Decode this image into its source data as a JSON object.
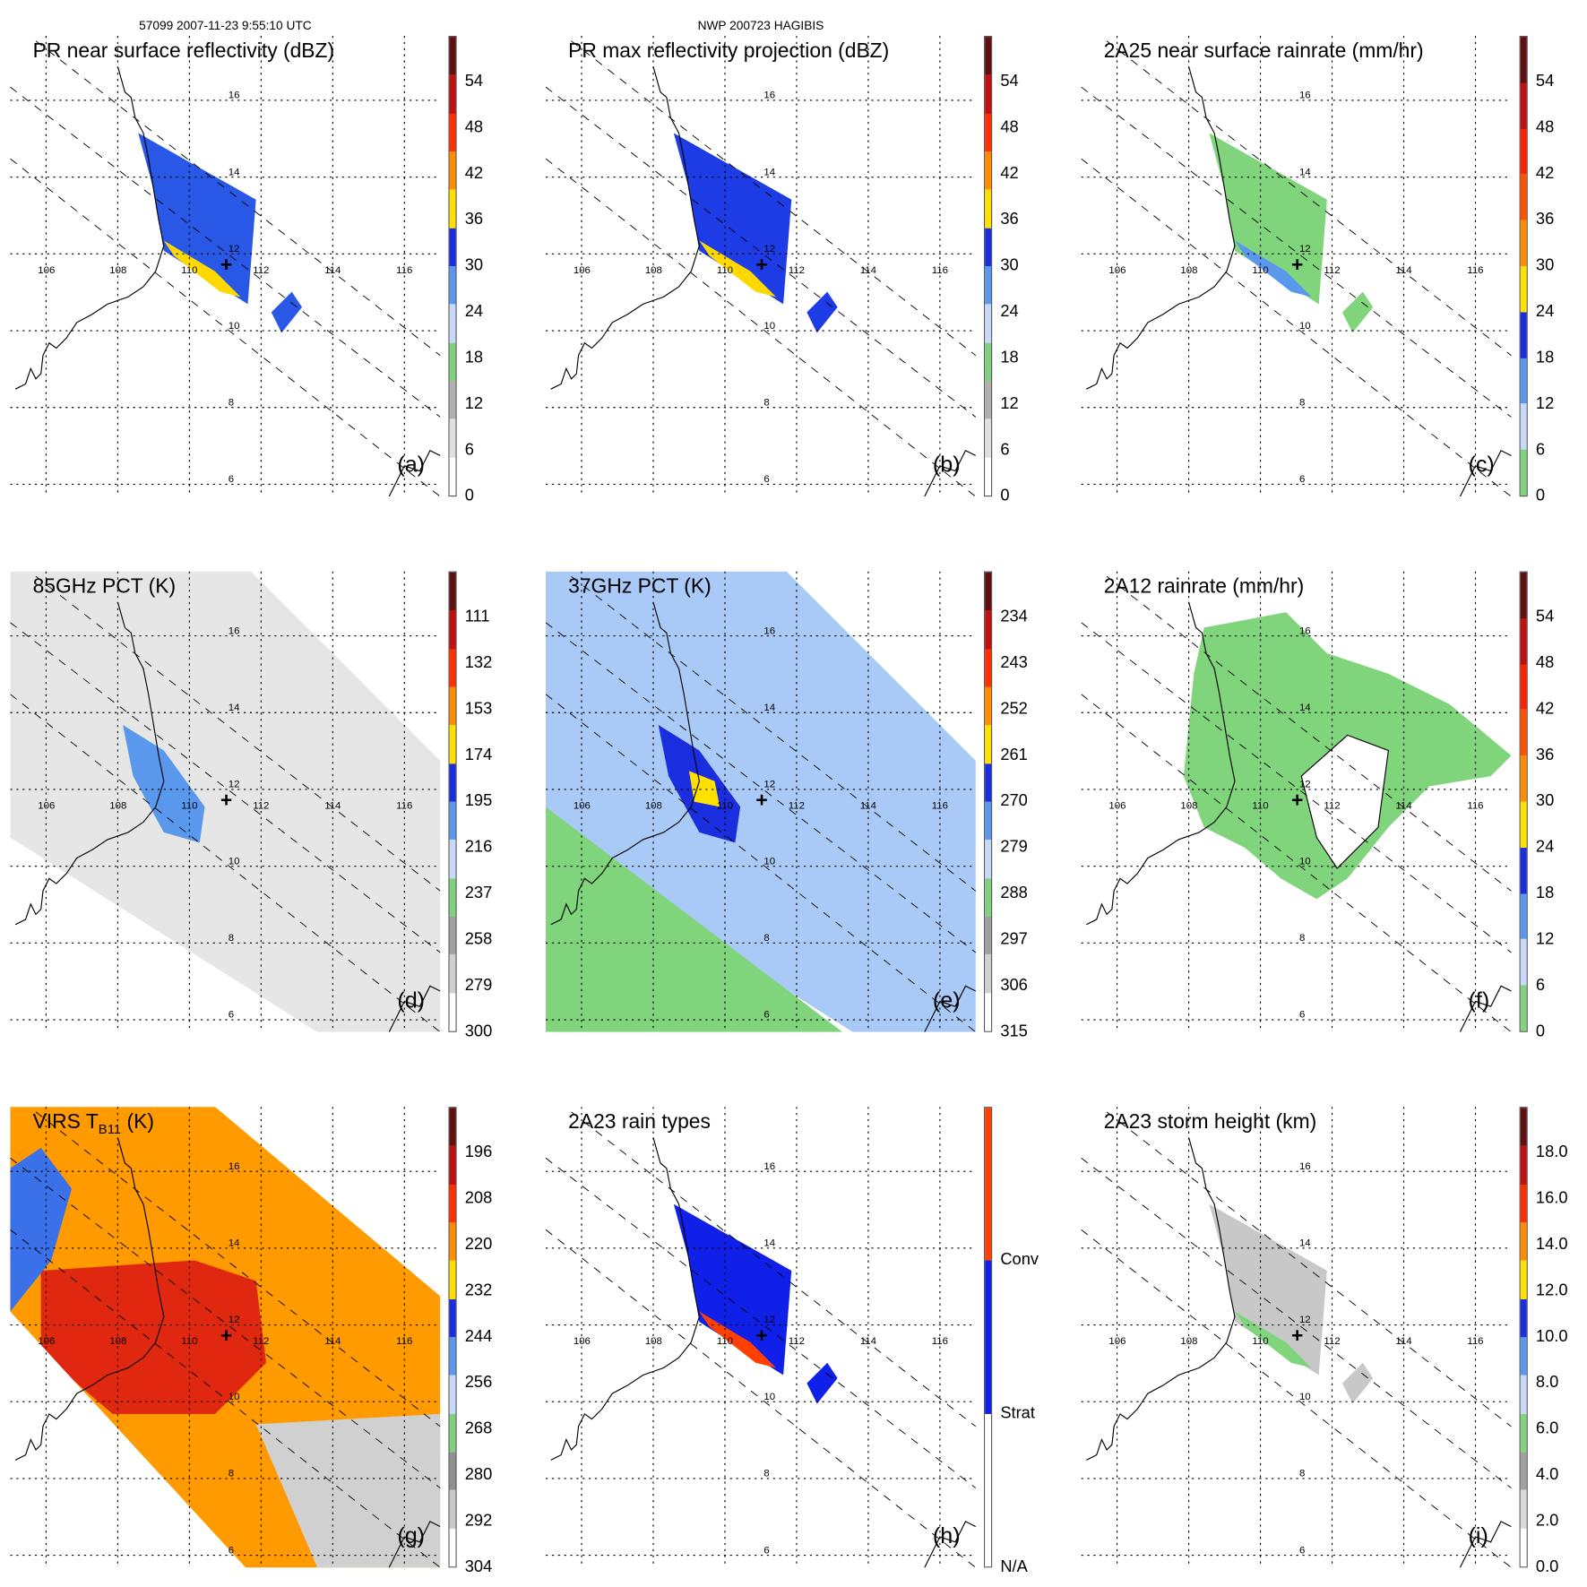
{
  "header": {
    "left": "57099 2007-11-23 9:55:10 UTC",
    "center": "NWP 200723 HAGIBIS"
  },
  "lat_labels": [
    "16",
    "14",
    "12",
    "10",
    "8",
    "6"
  ],
  "lon_labels": [
    "106",
    "108",
    "110",
    "112",
    "114",
    "116"
  ],
  "panels": [
    {
      "id": "a",
      "title": "PR near surface reflectivity (dBZ)",
      "label": "(a)",
      "kind": "pr",
      "fill": "#2a58e6",
      "accent": "#ffd800",
      "ticks": [
        "0",
        "6",
        "12",
        "18",
        "24",
        "30",
        "36",
        "42",
        "48",
        "54"
      ],
      "colors": [
        "#ffffff",
        "#e0e0e0",
        "#b0b0b0",
        "#7fd07f",
        "#c8d8f8",
        "#5a98ee",
        "#1a2ee0",
        "#ffe000",
        "#ff8c00",
        "#ff3000",
        "#c01010",
        "#601010"
      ]
    },
    {
      "id": "b",
      "title": "PR max reflectivity projection (dBZ)",
      "label": "(b)",
      "kind": "pr",
      "fill": "#1e3ce6",
      "accent": "#ffd800",
      "ticks": [
        "0",
        "6",
        "12",
        "18",
        "24",
        "30",
        "36",
        "42",
        "48",
        "54"
      ],
      "colors": [
        "#ffffff",
        "#e0e0e0",
        "#b0b0b0",
        "#7fd07f",
        "#c8d8f8",
        "#5a98ee",
        "#1a2ee0",
        "#ffe000",
        "#ff8c00",
        "#ff3000",
        "#c01010",
        "#601010"
      ]
    },
    {
      "id": "c",
      "title": "2A25 near surface rainrate (mm/hr)",
      "label": "(c)",
      "kind": "pr",
      "fill": "#80d47c",
      "accent": "#5a98ee",
      "ticks": [
        "0",
        "6",
        "12",
        "18",
        "24",
        "30",
        "36",
        "42",
        "48",
        "54"
      ],
      "colors": [
        "#80d47c",
        "#c8d8f8",
        "#5a98ee",
        "#1a2ee0",
        "#ffe000",
        "#ff8c00",
        "#ff5000",
        "#ff2000",
        "#c01010",
        "#601010"
      ]
    },
    {
      "id": "d",
      "title": "85GHz PCT (K)",
      "label": "(d)",
      "kind": "wide",
      "fill": "#e6e6e6",
      "accent": "#5a98ee",
      "ticks": [
        "300",
        "279",
        "258",
        "237",
        "216",
        "195",
        "174",
        "153",
        "132",
        "111"
      ],
      "colors": [
        "#ffffff",
        "#d0d0d0",
        "#a0a0a0",
        "#7fd07f",
        "#c8d8f8",
        "#5a98ee",
        "#1a2ee0",
        "#ffe000",
        "#ff8c00",
        "#ff3000",
        "#c01010",
        "#601010"
      ]
    },
    {
      "id": "e",
      "title": "37GHz PCT (K)",
      "label": "(e)",
      "kind": "wide",
      "fill": "#a9c9f7",
      "accent": "#ffe000",
      "ticks": [
        "315",
        "306",
        "297",
        "288",
        "279",
        "270",
        "261",
        "252",
        "243",
        "234"
      ],
      "colors": [
        "#ffffff",
        "#d0d0d0",
        "#a0a0a0",
        "#7fd07f",
        "#c8d8f8",
        "#5a98ee",
        "#1a2ee0",
        "#ffe000",
        "#ff8c00",
        "#ff3000",
        "#c01010",
        "#601010"
      ]
    },
    {
      "id": "f",
      "title": "2A12 rainrate (mm/hr)",
      "label": "(f)",
      "kind": "storm",
      "fill": "#80d47c",
      "accent": "#5a98ee",
      "ticks": [
        "0",
        "6",
        "12",
        "18",
        "24",
        "30",
        "36",
        "42",
        "48",
        "54"
      ],
      "colors": [
        "#80d47c",
        "#c8d8f8",
        "#5a98ee",
        "#1a2ee0",
        "#ffe000",
        "#ff8c00",
        "#ff5000",
        "#ff2000",
        "#c01010",
        "#601010"
      ]
    },
    {
      "id": "g",
      "title": "VIRS T",
      "title_sub": "B11",
      "title_end": " (K)",
      "label": "(g)",
      "kind": "virs",
      "fill": "#ff9a00",
      "accent": "#e02010",
      "ticks": [
        "304",
        "292",
        "280",
        "268",
        "256",
        "244",
        "232",
        "220",
        "208",
        "196"
      ],
      "colors": [
        "#ffffff",
        "#c8c8c8",
        "#909090",
        "#7fd07f",
        "#c8d8f8",
        "#5a98ee",
        "#1a2ee0",
        "#ffe000",
        "#ff8c00",
        "#ff3000",
        "#c01010",
        "#601010"
      ]
    },
    {
      "id": "h",
      "title": "2A23 rain types",
      "label": "(h)",
      "kind": "pr",
      "fill": "#1020e8",
      "accent": "#ff4000",
      "ticks": [
        "N/A",
        "Strat",
        "Conv"
      ],
      "colors": [
        "#ffffff",
        "#1020e8",
        "#ff4000"
      ]
    },
    {
      "id": "i",
      "title": "2A23 storm height (km)",
      "label": "(i)",
      "kind": "pr",
      "fill": "#c8c8c8",
      "accent": "#80d47c",
      "ticks": [
        "0.0",
        "2.0",
        "4.0",
        "6.0",
        "8.0",
        "10.0",
        "12.0",
        "14.0",
        "16.0",
        "18.0"
      ],
      "colors": [
        "#ffffff",
        "#d8d8d8",
        "#a0a0a0",
        "#80d47c",
        "#c8d8f8",
        "#5a98ee",
        "#1a2ee0",
        "#ffe000",
        "#ff8c00",
        "#ff3000",
        "#c01010",
        "#601010"
      ]
    }
  ]
}
